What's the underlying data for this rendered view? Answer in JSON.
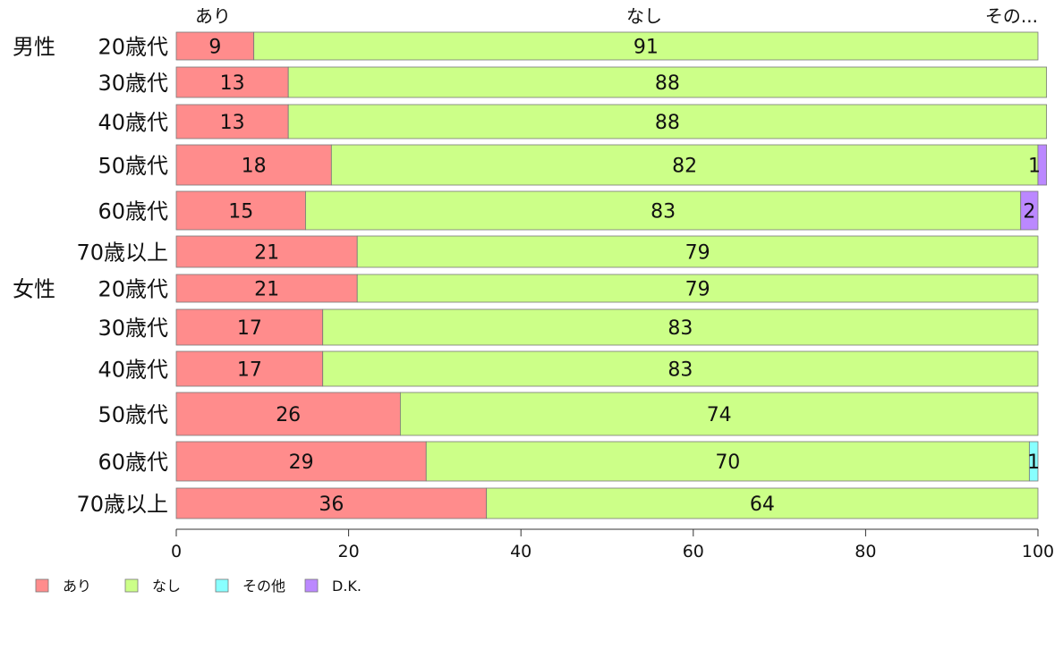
{
  "chart_data": {
    "type": "bar",
    "orientation": "horizontal",
    "stacked": true,
    "categories": [
      {
        "group": "男性",
        "label": "20歳代"
      },
      {
        "group": "",
        "label": "30歳代"
      },
      {
        "group": "",
        "label": "40歳代"
      },
      {
        "group": "",
        "label": "50歳代"
      },
      {
        "group": "",
        "label": "60歳代"
      },
      {
        "group": "",
        "label": "70歳以上"
      },
      {
        "group": "女性",
        "label": "20歳代"
      },
      {
        "group": "",
        "label": "30歳代"
      },
      {
        "group": "",
        "label": "40歳代"
      },
      {
        "group": "",
        "label": "50歳代"
      },
      {
        "group": "",
        "label": "60歳代"
      },
      {
        "group": "",
        "label": "70歳以上"
      }
    ],
    "series": [
      {
        "name": "あり",
        "color": "#ff8c8c",
        "values": [
          9,
          13,
          13,
          18,
          15,
          21,
          21,
          17,
          17,
          26,
          29,
          36
        ]
      },
      {
        "name": "なし",
        "color": "#ccff88",
        "values": [
          91,
          88,
          88,
          82,
          83,
          79,
          79,
          83,
          83,
          74,
          70,
          64
        ]
      },
      {
        "name": "その他",
        "color": "#88ffff",
        "values": [
          0,
          0,
          0,
          0,
          0,
          0,
          0,
          0,
          0,
          0,
          1,
          0
        ]
      },
      {
        "name": "D.K.",
        "color": "#bb88ff",
        "values": [
          0,
          0,
          0,
          1,
          2,
          0,
          0,
          0,
          0,
          0,
          0,
          0
        ]
      }
    ],
    "column_labels": [
      "あり",
      "なし",
      "その..."
    ],
    "x_ticks": [
      0,
      20,
      40,
      60,
      80,
      100
    ],
    "xlim": [
      0,
      100
    ],
    "legend_position": "bottom-left",
    "grid": false
  }
}
